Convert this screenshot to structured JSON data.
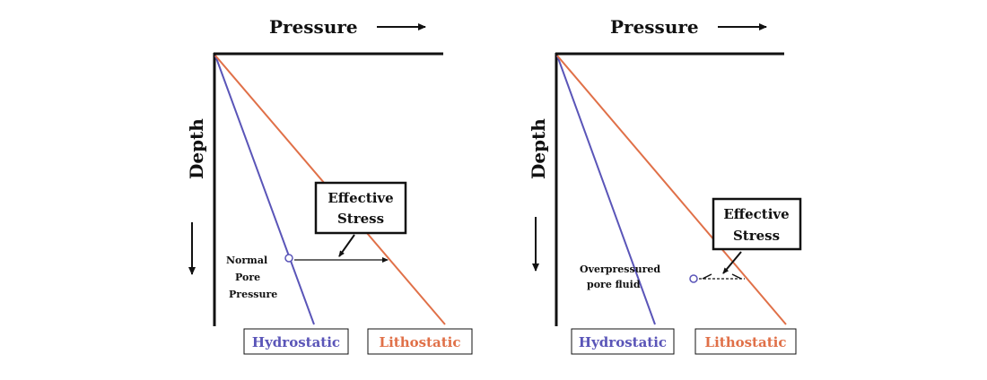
{
  "colors": {
    "hydrostatic": "#5a55b8",
    "lithostatic": "#e07048",
    "axis": "#111111"
  },
  "left_panel": {
    "pressure_label": "Pressure",
    "depth_label": "Depth",
    "callout": [
      "Effective",
      "Stress"
    ],
    "note": [
      "Normal",
      "Pore",
      "Pressure"
    ],
    "legend_hydrostatic": "Hydrostatic",
    "legend_lithostatic": "Lithostatic"
  },
  "right_panel": {
    "pressure_label": "Pressure",
    "depth_label": "Depth",
    "callout": [
      "Effective",
      "Stress"
    ],
    "note": [
      "Overpressured",
      "pore fluid"
    ],
    "legend_hydrostatic": "Hydrostatic",
    "legend_lithostatic": "Lithostatic"
  }
}
